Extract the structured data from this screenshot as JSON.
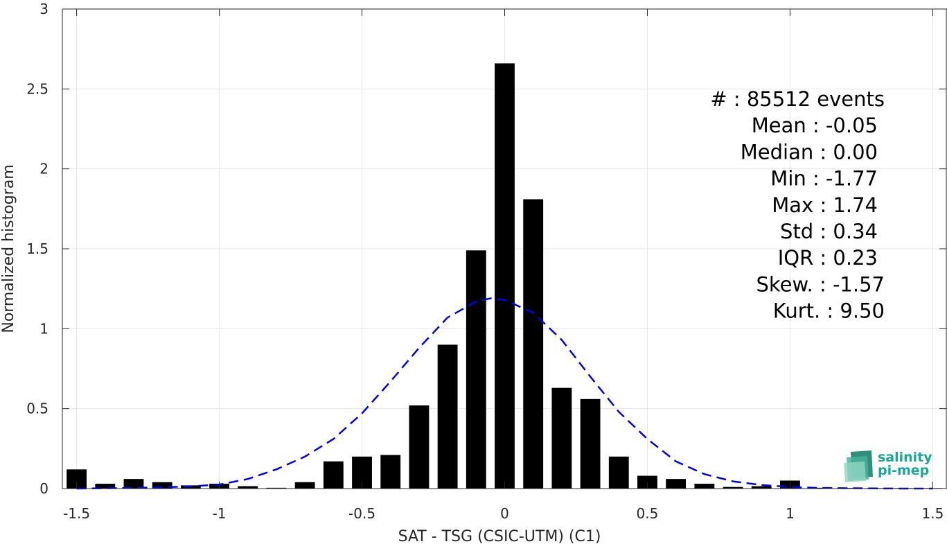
{
  "chart_data": {
    "type": "bar",
    "xlabel": "SAT - TSG (CSIC-UTM) (C1)",
    "ylabel": "Normalized histogram",
    "xlim": [
      -1.55,
      1.55
    ],
    "ylim": [
      0,
      3
    ],
    "grid": true,
    "x_ticks": [
      -1.5,
      -1,
      -0.5,
      0,
      0.5,
      1,
      1.5
    ],
    "x_tick_labels": [
      "-1.5",
      "-1",
      "-0.5",
      "0",
      "0.5",
      "1",
      "1.5"
    ],
    "y_ticks": [
      0,
      0.5,
      1,
      1.5,
      2,
      2.5,
      3
    ],
    "y_tick_labels": [
      "0",
      "0.5",
      "1",
      "1.5",
      "2",
      "2.5",
      "3"
    ],
    "bin_width": 0.1,
    "bins": {
      "x": [
        -1.5,
        -1.4,
        -1.3,
        -1.2,
        -1.1,
        -1.0,
        -0.9,
        -0.8,
        -0.7,
        -0.6,
        -0.5,
        -0.4,
        -0.3,
        -0.2,
        -0.1,
        0.0,
        0.1,
        0.2,
        0.3,
        0.4,
        0.5,
        0.6,
        0.7,
        0.8,
        0.9,
        1.0,
        1.1,
        1.2,
        1.3,
        1.4,
        1.5
      ],
      "values": [
        0.12,
        0.03,
        0.06,
        0.04,
        0.02,
        0.03,
        0.015,
        0.005,
        0.04,
        0.17,
        0.2,
        0.21,
        0.52,
        0.9,
        1.49,
        2.66,
        1.81,
        0.63,
        0.56,
        0.2,
        0.08,
        0.06,
        0.03,
        0.01,
        0.015,
        0.05,
        0.005,
        0.004,
        0.003,
        0.003,
        0.003
      ],
      "color": "#000000"
    },
    "fit_curve": {
      "style": "dashed",
      "color": "#0000e6",
      "x": [
        -1.5,
        -1.4,
        -1.3,
        -1.2,
        -1.1,
        -1.0,
        -0.9,
        -0.8,
        -0.7,
        -0.6,
        -0.5,
        -0.4,
        -0.3,
        -0.2,
        -0.1,
        -0.05,
        0.0,
        0.1,
        0.2,
        0.3,
        0.4,
        0.5,
        0.6,
        0.7,
        0.8,
        0.9,
        1.0,
        1.1,
        1.2,
        1.3,
        1.4,
        1.5
      ],
      "y": [
        0.0,
        0.002,
        0.004,
        0.008,
        0.014,
        0.025,
        0.06,
        0.12,
        0.2,
        0.31,
        0.47,
        0.67,
        0.88,
        1.07,
        1.17,
        1.19,
        1.18,
        1.1,
        0.93,
        0.7,
        0.48,
        0.31,
        0.17,
        0.09,
        0.045,
        0.022,
        0.01,
        0.004,
        0.002,
        0.001,
        0.0,
        0.0
      ]
    },
    "annotations": [
      "#  : 85512 events",
      "Mean : -0.05",
      "Median : 0.00",
      "Min : -1.77",
      "Max : 1.74",
      "Std : 0.34",
      "IQR : 0.23",
      "Skew. : -1.57",
      "Kurt. : 9.50"
    ]
  },
  "logo": {
    "line1": "salinity",
    "line2": "pi-mep",
    "color": "#1aa896"
  }
}
